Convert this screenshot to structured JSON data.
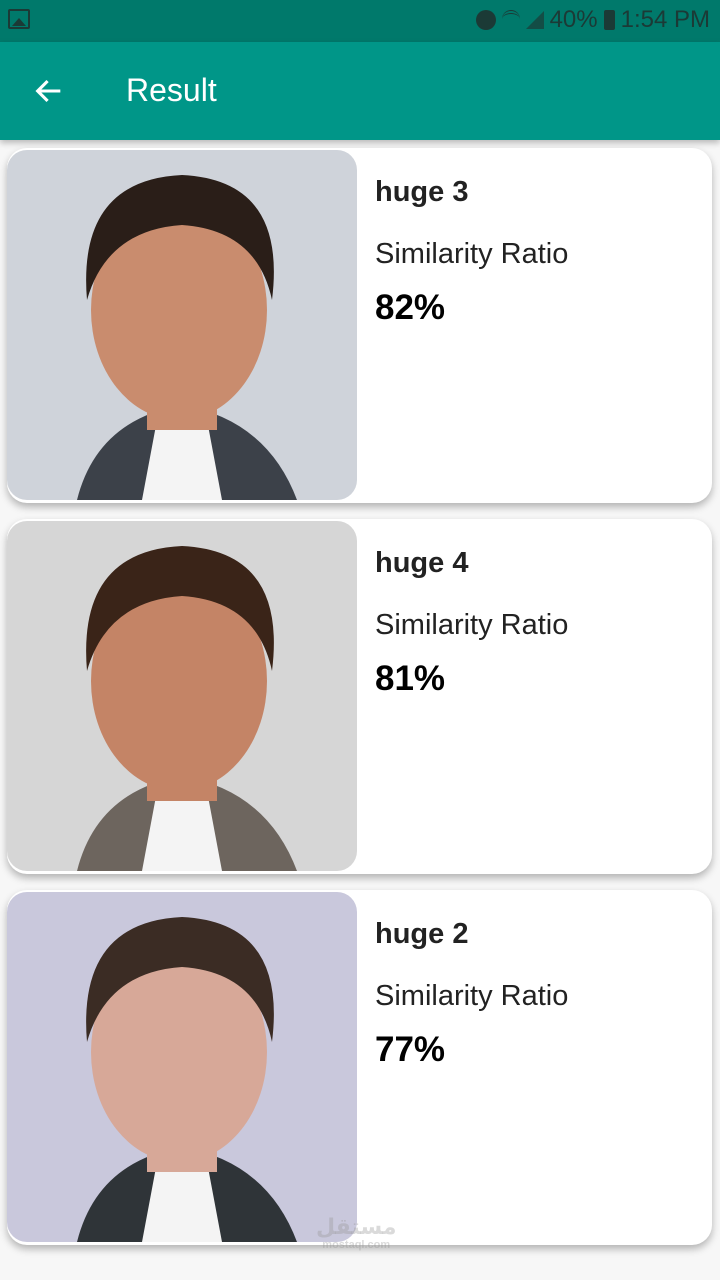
{
  "status_bar": {
    "battery": "40%",
    "time": "1:54 PM",
    "icons": [
      "image-icon",
      "alarm-icon",
      "wifi-icon",
      "signal-icon",
      "battery-icon"
    ]
  },
  "app_bar": {
    "title": "Result",
    "back_icon": "arrow-left-icon",
    "color": "#009688"
  },
  "results": [
    {
      "name": "huge 3",
      "label": "Similarity Ratio",
      "ratio": "82%",
      "photo_bg": "#cfd3da",
      "hair": "#2a1e18",
      "skin": "#c98c6e",
      "suit": "#3c4149"
    },
    {
      "name": "huge 4",
      "label": "Similarity Ratio",
      "ratio": "81%",
      "photo_bg": "#d6d6d6",
      "hair": "#3a2418",
      "skin": "#c48466",
      "suit": "#6d655e"
    },
    {
      "name": "huge 2",
      "label": "Similarity Ratio",
      "ratio": "77%",
      "photo_bg": "#c9c8dc",
      "hair": "#3b2c24",
      "skin": "#d7a898",
      "suit": "#2f3438"
    }
  ],
  "watermark": {
    "text": "مستقل",
    "url": "mostaql.com"
  }
}
